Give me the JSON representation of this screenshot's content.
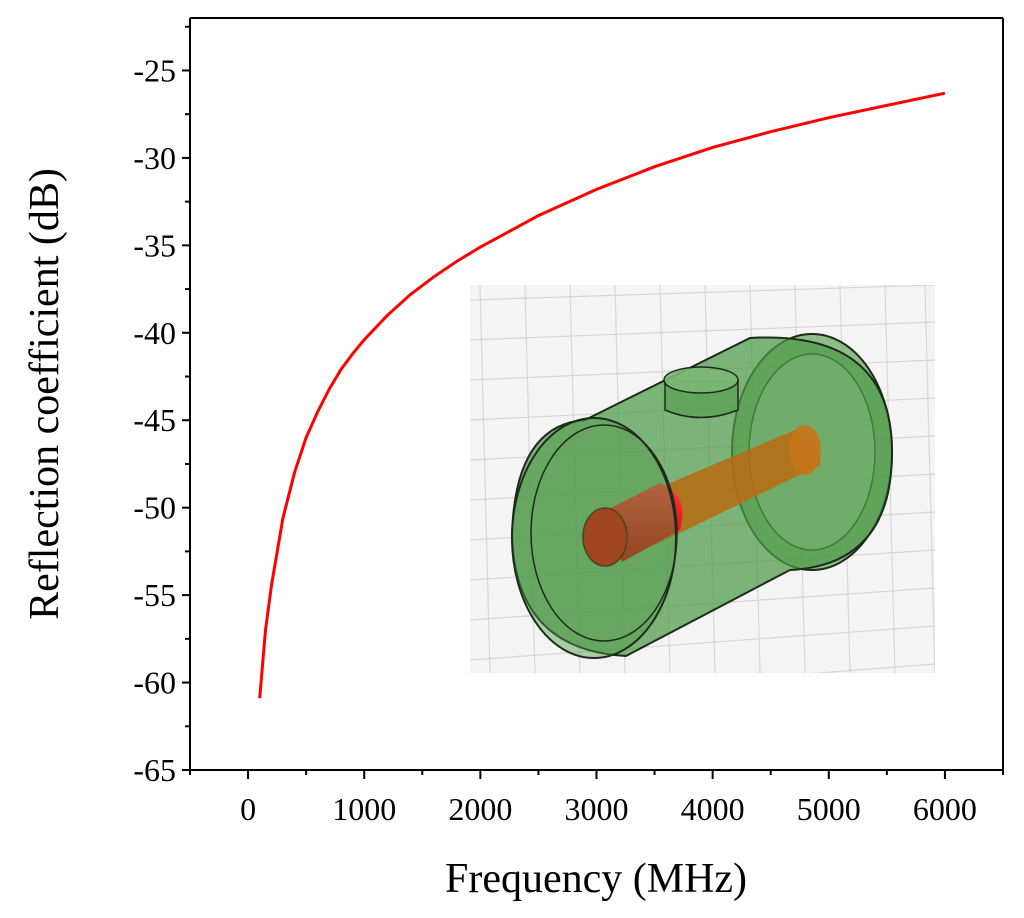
{
  "chart_data": {
    "type": "line",
    "title": "",
    "xlabel": "Frequency (MHz)",
    "ylabel": "Reflection coefficient (dB)",
    "xlim": [
      -500,
      6500
    ],
    "ylim": [
      -65,
      -22
    ],
    "x_ticks": [
      0,
      1000,
      2000,
      3000,
      4000,
      5000,
      6000
    ],
    "y_ticks": [
      -25,
      -30,
      -35,
      -40,
      -45,
      -50,
      -55,
      -60,
      -65
    ],
    "grid": false,
    "legend": "none",
    "series": [
      {
        "color": "#ff0000",
        "x": [
          100,
          150,
          200,
          300,
          400,
          500,
          600,
          700,
          800,
          900,
          1000,
          1200,
          1400,
          1600,
          1800,
          2000,
          2500,
          3000,
          3500,
          4000,
          4500,
          5000,
          5500,
          6000
        ],
        "y": [
          -60.9,
          -57.0,
          -54.5,
          -50.6,
          -48.0,
          -46.0,
          -44.5,
          -43.2,
          -42.1,
          -41.2,
          -40.4,
          -39.0,
          -37.8,
          -36.8,
          -35.9,
          -35.1,
          -33.3,
          -31.8,
          -30.5,
          -29.4,
          -28.5,
          -27.7,
          -27.0,
          -26.3
        ]
      }
    ]
  },
  "inset": {
    "description_icon": "coaxial-cylinder-model-icon",
    "colors": {
      "outer": "#5fa35a",
      "inner": "#ff1a1a",
      "grid": "#d8d8d8"
    }
  }
}
